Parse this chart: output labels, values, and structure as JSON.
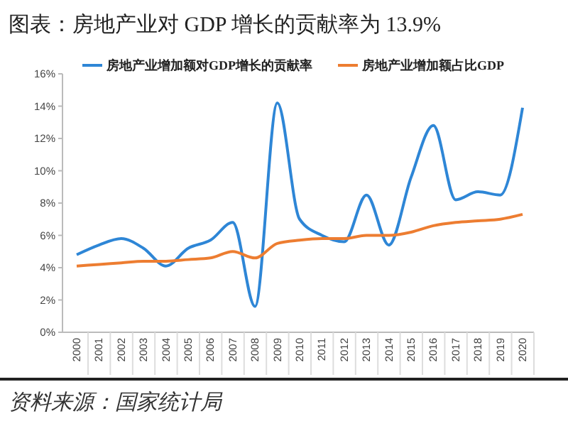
{
  "chart_data": {
    "type": "line",
    "title": "图表：房地产业对 GDP 增长的贡献率为 13.9%",
    "categories": [
      "2000",
      "2001",
      "2002",
      "2003",
      "2004",
      "2005",
      "2006",
      "2007",
      "2008",
      "2009",
      "2010",
      "2011",
      "2012",
      "2013",
      "2014",
      "2015",
      "2016",
      "2017",
      "2018",
      "2019",
      "2020"
    ],
    "series": [
      {
        "name": "房地产业增加额对GDP增长的贡献率",
        "color": "#2e86d6",
        "values": [
          4.8,
          5.4,
          5.8,
          5.2,
          4.1,
          5.2,
          5.7,
          6.8,
          1.6,
          14.2,
          7.0,
          6.0,
          5.6,
          8.5,
          5.4,
          9.6,
          12.8,
          8.2,
          8.7,
          8.5,
          13.9
        ]
      },
      {
        "name": "房地产业增加额占比GDP",
        "color": "#ed7d31",
        "values": [
          4.1,
          4.2,
          4.3,
          4.4,
          4.4,
          4.5,
          4.6,
          5.0,
          4.6,
          5.5,
          5.7,
          5.8,
          5.8,
          6.0,
          6.0,
          6.2,
          6.6,
          6.8,
          6.9,
          7.0,
          7.3
        ]
      }
    ],
    "ylim": [
      0,
      16
    ],
    "yticks": [
      {
        "value": 0,
        "label": "0%"
      },
      {
        "value": 2,
        "label": "2%"
      },
      {
        "value": 4,
        "label": "4%"
      },
      {
        "value": 6,
        "label": "6%"
      },
      {
        "value": 8,
        "label": "8%"
      },
      {
        "value": 10,
        "label": "10%"
      },
      {
        "value": 12,
        "label": "12%"
      },
      {
        "value": 14,
        "label": "14%"
      },
      {
        "value": 16,
        "label": "16%"
      }
    ],
    "grid": false,
    "legend": "top",
    "marker": "none",
    "line_style": "solid",
    "annotations": [
      "资料来源：国家统计局"
    ]
  }
}
